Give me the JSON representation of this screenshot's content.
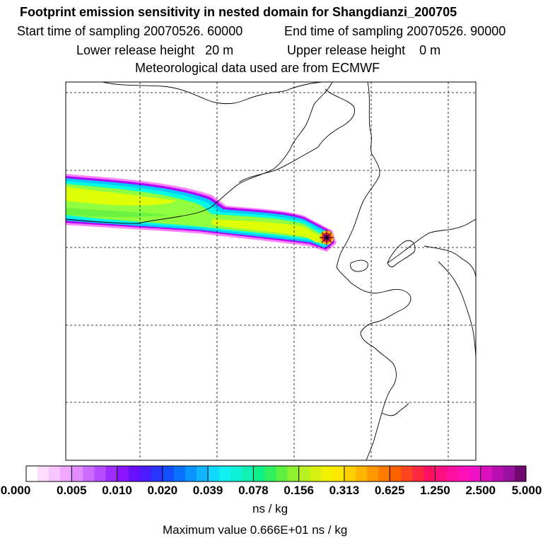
{
  "header": {
    "title": "Footprint emission sensitivity in nested domain for Shangdianzi_200705",
    "start_time": "Start time of sampling 20070526. 60000",
    "end_time": "End time of sampling 20070526. 90000",
    "lower_release": "Lower release height   20 m",
    "upper_release": "Upper release height    0 m",
    "met_data": "Meteorological data used are from ECMWF"
  },
  "colors": {
    "plume_core_hot": "#8b008b",
    "plume_red": "#ff2040",
    "plume_yellow": "#e8ff00",
    "plume_green": "#90ff40",
    "plume_cyan": "#00ffe0",
    "plume_blue": "#00c8ff",
    "plume_violet": "#b000ff",
    "plume_pink": "#ff80ff"
  },
  "legend": {
    "tick_labels": [
      "0.000",
      "0.005",
      "0.010",
      "0.020",
      "0.039",
      "0.078",
      "0.156",
      "0.313",
      "0.625",
      "1.250",
      "2.500",
      "5.000"
    ],
    "segments": [
      [
        "#ffffff",
        "#ffdcff",
        "#f8c4ff",
        "#f0a8ff"
      ],
      [
        "#e08cff",
        "#cc6cff",
        "#b64cff",
        "#9e2cff"
      ],
      [
        "#8a14ff",
        "#6a10ff",
        "#4a1cff",
        "#2a34ff"
      ],
      [
        "#1250ff",
        "#0a72ff",
        "#0a94ff",
        "#10b6ff"
      ],
      [
        "#10d8ff",
        "#10f0f0",
        "#10f0d4",
        "#10f0b0"
      ],
      [
        "#10f088",
        "#30f060",
        "#60f040",
        "#90f030"
      ],
      [
        "#b8f020",
        "#d8f010",
        "#f0f000",
        "#ffe800"
      ],
      [
        "#ffd000",
        "#ffb400",
        "#ff9800",
        "#ff7c00"
      ],
      [
        "#ff6000",
        "#ff4420",
        "#ff2840",
        "#ff1060"
      ],
      [
        "#ff1080",
        "#ff10a0",
        "#ff10b8",
        "#f010c8"
      ],
      [
        "#d810c0",
        "#b810b0",
        "#9810a0",
        "#700870"
      ]
    ],
    "units": "ns / kg",
    "max_value": "Maximum value  0.666E+01 ns / kg"
  }
}
